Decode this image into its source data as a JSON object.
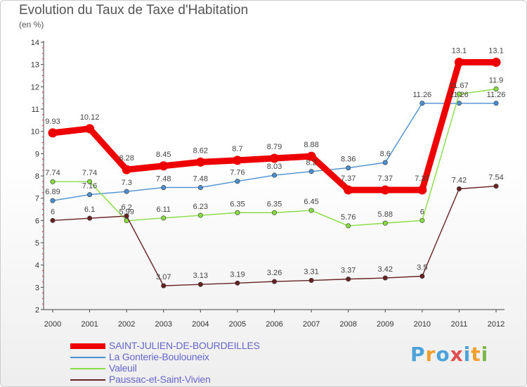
{
  "title": "Evolution du Taux de Taxe d'Habitation",
  "subtitle": "(en %)",
  "logo": {
    "text": "Proxiti",
    "colors": [
      "#4da3d9",
      "#f0a030",
      "#4da3d9",
      "#e05050",
      "#4da3d9",
      "#f0a030",
      "#7ab648"
    ]
  },
  "chart_data": {
    "type": "line",
    "title": "Evolution du Taux de Taxe d'Habitation",
    "ylabel": "(en %)",
    "xlabel": "",
    "x": [
      "2000",
      "2001",
      "2002",
      "2003",
      "2004",
      "2005",
      "2006",
      "2007",
      "2008",
      "2009",
      "2010",
      "2011",
      "2012"
    ],
    "ylim": [
      2,
      14
    ],
    "yticks": [
      "2",
      "3",
      "4",
      "5",
      "6",
      "7",
      "8",
      "9",
      "10",
      "11",
      "12",
      "13",
      "14"
    ],
    "series": [
      {
        "name": "SAINT-JULIEN-DE-BOURDEILLES",
        "color": "#ee0000",
        "width": "thick",
        "values": [
          9.93,
          10.12,
          8.28,
          8.45,
          8.62,
          8.7,
          8.79,
          8.88,
          7.37,
          7.37,
          7.37,
          13.1,
          13.1
        ],
        "labels": [
          "9.93",
          "10.12",
          "8.28",
          "8.45",
          "8.62",
          "8.7",
          "8.79",
          "8.88",
          "7.37",
          "7.37",
          "7.37",
          "13.1",
          "13.1"
        ]
      },
      {
        "name": "La Gonterie-Boulouneix",
        "color": "#4b8fd0",
        "width": "thin",
        "values": [
          6.89,
          7.16,
          7.3,
          7.48,
          7.48,
          7.76,
          8.03,
          8.2,
          8.36,
          8.6,
          11.26,
          11.26,
          11.26
        ],
        "labels": [
          "6.89",
          "7.16",
          "7.3",
          "7.48",
          "7.48",
          "7.76",
          "8.03",
          "8.2",
          "8.36",
          "8.6",
          "11.26",
          "11.26",
          "11.26"
        ]
      },
      {
        "name": "Valeuil",
        "color": "#88dd44",
        "width": "thin",
        "values": [
          7.74,
          7.74,
          5.99,
          6.11,
          6.23,
          6.35,
          6.35,
          6.45,
          5.76,
          5.88,
          6,
          11.67,
          11.9
        ],
        "labels": [
          "7.74",
          "7.74",
          "5.99",
          "6.11",
          "6.23",
          "6.35",
          "6.35",
          "6.45",
          "5.76",
          "5.88",
          "6",
          "11.67",
          "11.9"
        ]
      },
      {
        "name": "Paussac-et-Saint-Vivien",
        "color": "#662222",
        "width": "thin",
        "values": [
          6,
          6.1,
          6.2,
          3.07,
          3.13,
          3.19,
          3.26,
          3.31,
          3.37,
          3.42,
          3.5,
          7.42,
          7.54
        ],
        "labels": [
          "6",
          "6.1",
          "6.2",
          "3.07",
          "3.13",
          "3.19",
          "3.26",
          "3.31",
          "3.37",
          "3.42",
          "3.5",
          "7.42",
          "7.54"
        ]
      }
    ],
    "grid": false,
    "legend": "bottom-left"
  }
}
